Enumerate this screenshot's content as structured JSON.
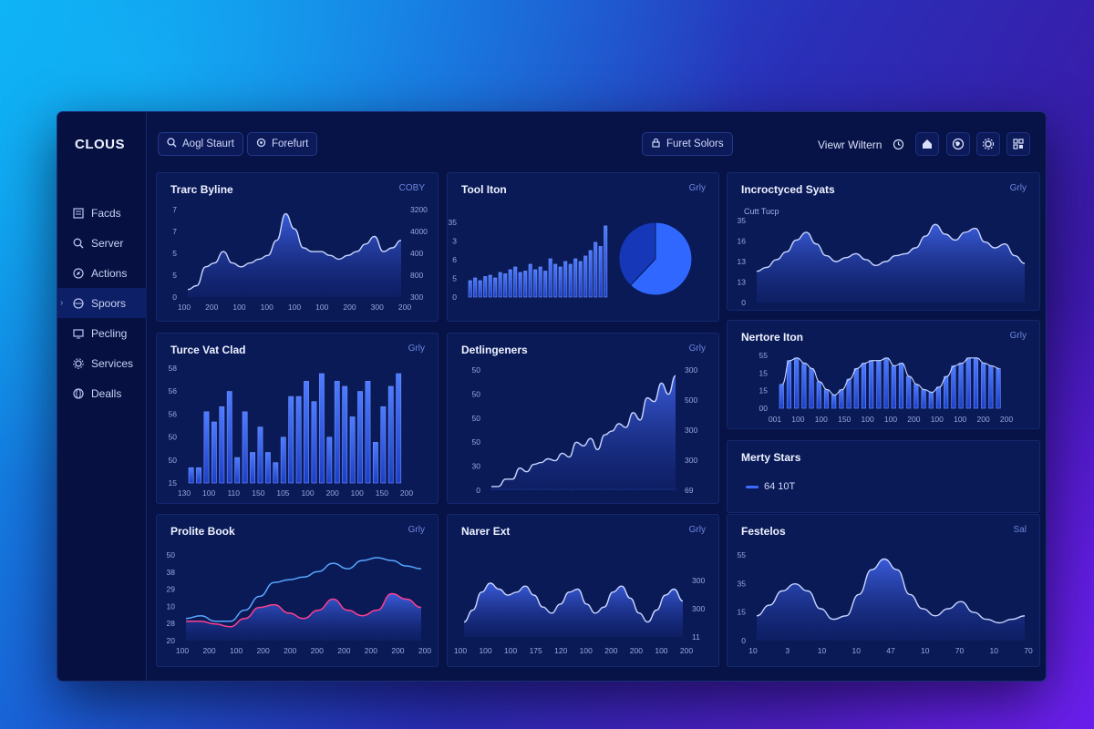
{
  "app": {
    "logo": "CLOUS"
  },
  "sidebar": {
    "items": [
      {
        "label": "Facds",
        "icon": "document-icon"
      },
      {
        "label": "Server",
        "icon": "search-icon"
      },
      {
        "label": "Actions",
        "icon": "compass-icon"
      },
      {
        "label": "Spoors",
        "icon": "sports-icon",
        "active": true
      },
      {
        "label": "Pecling",
        "icon": "screen-icon"
      },
      {
        "label": "Services",
        "icon": "gear-icon"
      },
      {
        "label": "Dealls",
        "icon": "globe-icon"
      }
    ]
  },
  "topbar": {
    "btn1": "Aogl Staurt",
    "btn2": "Forefurt",
    "btn3": "Furet Solors",
    "view_label": "Viewr Wiltern"
  },
  "colors": {
    "accent": "#3d6bff",
    "line": "#c7d6ff",
    "pink": "#ff3f8e",
    "cyan": "#58a6ff"
  },
  "panels": {
    "p1": {
      "title": "Trarc Byline",
      "menu": "COBY"
    },
    "p2": {
      "title": "Tool Iton",
      "menu": "Grly"
    },
    "p3": {
      "title": "Incroctyced Syats",
      "menu": "Grly",
      "sub": "Cutt Tucp"
    },
    "p4": {
      "title": "Turce Vat Clad",
      "menu": "Grly"
    },
    "p5": {
      "title": "Detlingeners",
      "menu": "Grly"
    },
    "p6": {
      "title": "Nertore Iton",
      "menu": "Grly"
    },
    "p7": {
      "title": "Merty Stars",
      "legend": "64 10T"
    },
    "p8": {
      "title": "Prolite Book",
      "menu": "Grly"
    },
    "p9": {
      "title": "Narer Ext",
      "menu": "Grly"
    },
    "p10": {
      "title": "Festelos",
      "menu": "Sal"
    }
  },
  "chart_data": [
    {
      "id": "p1",
      "type": "area",
      "ylabels": [
        "0",
        "5",
        "5",
        "7",
        "7"
      ],
      "y2labels": [
        "300",
        "800",
        "400",
        "4000",
        "3200"
      ],
      "xlabels": [
        "100",
        "200",
        "100",
        "100",
        "100",
        "100",
        "200",
        "300",
        "200"
      ],
      "values": [
        2,
        3,
        8,
        9,
        12,
        9,
        8,
        9,
        10,
        11,
        15,
        22,
        18,
        13,
        12,
        12,
        11,
        10,
        11,
        12,
        14,
        16,
        12,
        13,
        15
      ]
    },
    {
      "id": "p2",
      "type": "bar",
      "ylabels": [
        "0",
        "5",
        "6",
        "3",
        "35"
      ],
      "values": [
        12,
        14,
        12,
        15,
        16,
        14,
        18,
        17,
        20,
        22,
        18,
        19,
        24,
        20,
        22,
        19,
        28,
        24,
        22,
        26,
        24,
        28,
        26,
        30,
        34,
        40,
        37,
        52
      ],
      "pie": [
        0.62,
        0.38
      ]
    },
    {
      "id": "p3",
      "type": "area",
      "ylabels": [
        "0",
        "13",
        "13",
        "16",
        "35"
      ],
      "values": [
        16,
        18,
        22,
        26,
        32,
        36,
        30,
        24,
        21,
        23,
        25,
        22,
        19,
        21,
        24,
        25,
        28,
        34,
        40,
        35,
        32,
        36,
        38,
        31,
        28,
        30,
        24,
        20
      ]
    },
    {
      "id": "p4",
      "type": "bar",
      "ylabels": [
        "15",
        "50",
        "50",
        "56",
        "56",
        "58"
      ],
      "xlabels": [
        "130",
        "100",
        "110",
        "150",
        "105",
        "100",
        "200",
        "100",
        "150",
        "200"
      ],
      "values": [
        6,
        6,
        28,
        24,
        30,
        36,
        10,
        28,
        12,
        22,
        12,
        8,
        18,
        34,
        34,
        40,
        32,
        43,
        18,
        40,
        38,
        26,
        36,
        40,
        16,
        30,
        38,
        43
      ]
    },
    {
      "id": "p5",
      "type": "area",
      "ylabels": [
        "0",
        "30",
        "50",
        "50",
        "50",
        "50"
      ],
      "y2labels": [
        "69",
        "300",
        "300",
        "500",
        "300"
      ],
      "values": [
        2,
        2,
        6,
        6,
        12,
        10,
        14,
        15,
        17,
        16,
        20,
        18,
        26,
        24,
        28,
        22,
        30,
        32,
        36,
        34,
        42,
        38,
        50,
        48,
        58,
        52,
        62
      ]
    },
    {
      "id": "p6",
      "type": "bar",
      "ylabels": [
        "00",
        "15",
        "15",
        "55"
      ],
      "xlabels": [
        "001",
        "100",
        "100",
        "150",
        "100",
        "100",
        "200",
        "100",
        "100",
        "200",
        "200"
      ],
      "values": [
        18,
        36,
        38,
        34,
        30,
        20,
        14,
        10,
        14,
        22,
        30,
        34,
        36,
        36,
        38,
        32,
        34,
        24,
        18,
        14,
        12,
        16,
        24,
        32,
        34,
        38,
        38,
        34,
        32,
        30
      ]
    },
    {
      "id": "p8",
      "type": "line",
      "ylabels": [
        "20",
        "28",
        "10",
        "29",
        "38",
        "50"
      ],
      "xlabels": [
        "100",
        "200",
        "100",
        "200",
        "200",
        "200",
        "200",
        "200",
        "200",
        "200"
      ],
      "series": [
        {
          "color": "#58a6ff",
          "values": [
            16,
            18,
            14,
            14,
            22,
            32,
            42,
            44,
            46,
            50,
            56,
            52,
            58,
            60,
            58,
            54,
            52
          ]
        },
        {
          "color": "#ff3f8e",
          "values": [
            14,
            14,
            12,
            10,
            16,
            24,
            26,
            20,
            16,
            22,
            30,
            22,
            18,
            22,
            34,
            30,
            24
          ]
        }
      ]
    },
    {
      "id": "p9",
      "type": "area",
      "ylabels": [
        "11",
        "300",
        "300"
      ],
      "xlabels": [
        "100",
        "100",
        "100",
        "175",
        "120",
        "100",
        "200",
        "200",
        "100",
        "200"
      ],
      "values": [
        10,
        18,
        30,
        36,
        32,
        28,
        30,
        34,
        28,
        20,
        16,
        22,
        30,
        32,
        22,
        16,
        20,
        30,
        34,
        26,
        16,
        10,
        18,
        28,
        32,
        24
      ]
    },
    {
      "id": "p10",
      "type": "area",
      "ylabels": [
        "0",
        "15",
        "35",
        "55"
      ],
      "xlabels": [
        "10",
        "3",
        "10",
        "10",
        "47",
        "10",
        "70",
        "10",
        "70"
      ],
      "values": [
        14,
        20,
        28,
        32,
        28,
        18,
        12,
        14,
        26,
        40,
        46,
        40,
        26,
        18,
        14,
        18,
        22,
        16,
        12,
        10,
        12,
        14
      ]
    }
  ]
}
